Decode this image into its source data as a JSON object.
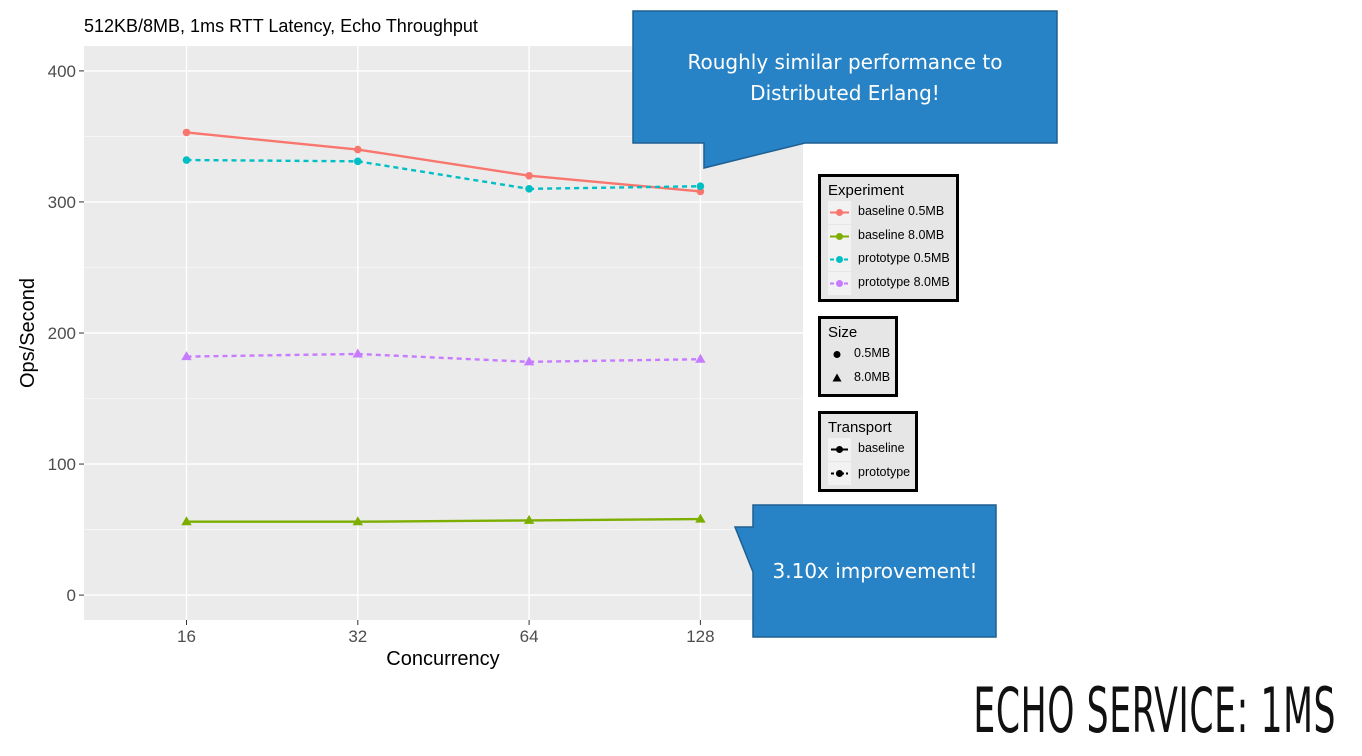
{
  "slide": {
    "title": "ECHO SERVICE: 1MS"
  },
  "callouts": {
    "top": "Roughly similar performance to Distributed Erlang!",
    "bottom": "3.10x improvement!"
  },
  "colors": {
    "baseline_05": "#F8766D",
    "baseline_80": "#7CAE00",
    "prototype_05": "#00BFC4",
    "prototype_80": "#C77CFF",
    "callout": "#2783C6",
    "panel": "#EBEBEB"
  },
  "chart_data": {
    "type": "line",
    "title": "512KB/8MB, 1ms RTT Latency, Echo Throughput",
    "xlabel": "Concurrency",
    "ylabel": "Ops/Second",
    "categories": [
      "16",
      "32",
      "64",
      "128"
    ],
    "yticks": [
      "0",
      "100",
      "200",
      "300",
      "400"
    ],
    "ylim": [
      -19,
      419
    ],
    "grid": true,
    "legend_position": "right",
    "series": [
      {
        "name": "baseline 0.5MB",
        "transport": "baseline",
        "size": "0.5MB",
        "values": [
          353,
          340,
          320,
          308
        ]
      },
      {
        "name": "baseline 8.0MB",
        "transport": "baseline",
        "size": "8.0MB",
        "values": [
          56,
          56,
          57,
          58
        ]
      },
      {
        "name": "prototype 0.5MB",
        "transport": "prototype",
        "size": "0.5MB",
        "values": [
          332,
          331,
          310,
          312
        ]
      },
      {
        "name": "prototype 8.0MB",
        "transport": "prototype",
        "size": "8.0MB",
        "values": [
          182,
          184,
          178,
          180
        ]
      }
    ],
    "legends": {
      "experiment": {
        "title": "Experiment",
        "items": [
          "baseline 0.5MB",
          "baseline 8.0MB",
          "prototype 0.5MB",
          "prototype 8.0MB"
        ]
      },
      "size": {
        "title": "Size",
        "items": [
          "0.5MB",
          "8.0MB"
        ]
      },
      "transport": {
        "title": "Transport",
        "items": [
          "baseline",
          "prototype"
        ]
      }
    }
  }
}
